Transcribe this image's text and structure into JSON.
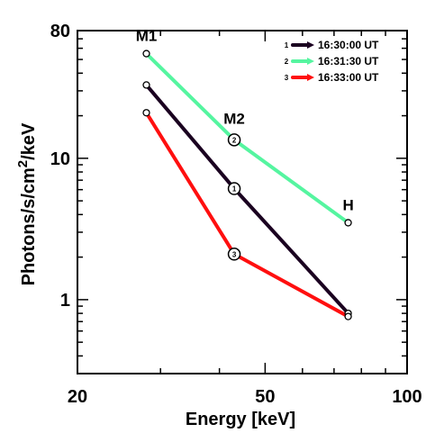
{
  "chart_data": {
    "type": "line",
    "xlabel": "Energy [keV]",
    "ylabel_base": "Photons/s/cm",
    "ylabel_sup": "2",
    "ylabel_tail": "/keV",
    "x_scale": "log",
    "y_scale": "log",
    "xlim": [
      20,
      100
    ],
    "ylim": [
      0.3,
      80
    ],
    "xticks": [
      20,
      50,
      100
    ],
    "xtick_labels": [
      "20",
      "50",
      "100"
    ],
    "yticks": [
      1,
      10,
      80
    ],
    "ytick_labels": [
      "1",
      "10",
      "80"
    ],
    "grid": false,
    "legend_position": "top-right",
    "series": [
      {
        "name": "16:30:00 UT",
        "legend_index": "1",
        "color": "#1a0020",
        "x": [
          28,
          43,
          75
        ],
        "y": [
          33,
          6.1,
          0.8
        ]
      },
      {
        "name": "16:31:30 UT",
        "legend_index": "2",
        "color": "#55f5a0",
        "x": [
          28,
          43,
          75
        ],
        "y": [
          55,
          13.5,
          3.5
        ]
      },
      {
        "name": "16:33:00 UT",
        "legend_index": "3",
        "color": "#ff0f0f",
        "x": [
          28,
          43,
          75
        ],
        "y": [
          21,
          2.1,
          0.76
        ]
      }
    ],
    "annotations": [
      {
        "text": "M1",
        "x": 28,
        "y": 55
      },
      {
        "text": "M2",
        "x": 43,
        "y": 13.5
      },
      {
        "text": "H",
        "x": 75,
        "y": 3.5
      }
    ],
    "marker_labels": [
      {
        "text": "1",
        "x": 43,
        "y": 6.1
      },
      {
        "text": "2",
        "x": 43,
        "y": 13.5
      },
      {
        "text": "3",
        "x": 43,
        "y": 2.1
      }
    ]
  }
}
